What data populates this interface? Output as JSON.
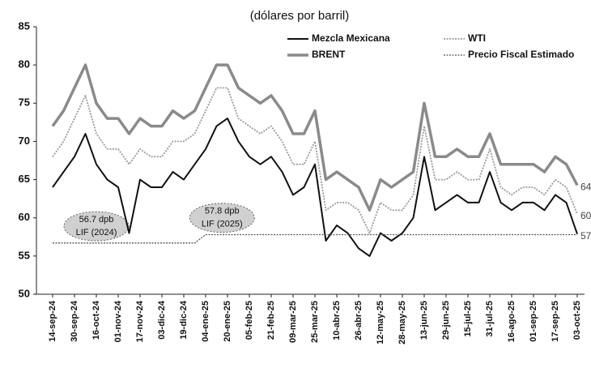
{
  "chart_data": {
    "type": "line",
    "title": "(dólares por barril)",
    "categories": [
      "14-sep-24",
      null,
      "30-sep-24",
      null,
      "16-oct-24",
      null,
      "01-nov-24",
      null,
      "17-nov-24",
      null,
      "03-dic-24",
      null,
      "19-dic-24",
      null,
      "04-ene-25",
      null,
      "20-ene-25",
      null,
      "05-feb-25",
      null,
      "21-feb-25",
      null,
      "09-mar-25",
      null,
      "25-mar-25",
      null,
      "10-abr-25",
      null,
      "26-abr-25",
      null,
      "12-may-25",
      null,
      "28-may-25",
      null,
      "13-jun-25",
      null,
      "29-jun-25",
      null,
      "15-jul-25",
      null,
      "31-jul-25",
      null,
      "16-ago-25",
      null,
      "01-sep-25",
      null,
      "17-sep-25",
      null,
      "03-oct-25"
    ],
    "series": [
      {
        "name": "Mezcla Mexicana",
        "color": "#111111",
        "style": "solid",
        "width": 2,
        "values": [
          64,
          66,
          68,
          71,
          67,
          65,
          64,
          58,
          65,
          64,
          64,
          66,
          65,
          67,
          69,
          72,
          73,
          70,
          68,
          67,
          68,
          66,
          63,
          64,
          67,
          57,
          59,
          58,
          56,
          55,
          58,
          57,
          58,
          60,
          68,
          61,
          62,
          63,
          62,
          62,
          66,
          62,
          61,
          62,
          62,
          61,
          63,
          62,
          57.88
        ],
        "value_labels": [
          null,
          null,
          null,
          null,
          null,
          null,
          null,
          null,
          null,
          null,
          null,
          null,
          null,
          null,
          null,
          null,
          null,
          null,
          null,
          null,
          null,
          null,
          null,
          null,
          null,
          null,
          null,
          null,
          null,
          null,
          null,
          null,
          null,
          null,
          null,
          null,
          null,
          null,
          null,
          null,
          null,
          null,
          null,
          null,
          null,
          null,
          null,
          null,
          "57.88"
        ]
      },
      {
        "name": "BRENT",
        "color": "#8a8a8a",
        "style": "solid",
        "width": 3.5,
        "values": [
          72,
          74,
          77,
          80,
          75,
          73,
          73,
          71,
          73,
          72,
          72,
          74,
          73,
          74,
          77,
          80,
          80,
          77,
          76,
          75,
          76,
          74,
          71,
          71,
          74,
          65,
          66,
          65,
          64,
          61,
          65,
          64,
          65,
          66,
          75,
          68,
          68,
          69,
          68,
          68,
          71,
          67,
          67,
          67,
          67,
          66,
          68,
          67,
          64.27
        ],
        "value_labels": [
          null,
          null,
          null,
          null,
          null,
          null,
          null,
          null,
          null,
          null,
          null,
          null,
          null,
          null,
          null,
          null,
          null,
          null,
          null,
          null,
          null,
          null,
          null,
          null,
          null,
          null,
          null,
          null,
          null,
          null,
          null,
          null,
          null,
          null,
          null,
          null,
          null,
          null,
          null,
          null,
          null,
          null,
          null,
          null,
          null,
          null,
          null,
          null,
          "64.27"
        ]
      },
      {
        "name": "WTI",
        "color": "#9a9a9a",
        "style": "dotted",
        "width": 1.8,
        "values": [
          68,
          70,
          73,
          76,
          71,
          69,
          69,
          67,
          69,
          68,
          68,
          70,
          70,
          71,
          74,
          77,
          77,
          73,
          72,
          71,
          72,
          70,
          67,
          67,
          70,
          61,
          62,
          62,
          61,
          58,
          62,
          61,
          61,
          63,
          72,
          65,
          65,
          66,
          65,
          65,
          69,
          64,
          63,
          64,
          64,
          63,
          65,
          64,
          60.5
        ],
        "value_labels": [
          null,
          null,
          null,
          null,
          null,
          null,
          null,
          null,
          null,
          null,
          null,
          null,
          null,
          null,
          null,
          null,
          null,
          null,
          null,
          null,
          null,
          null,
          null,
          null,
          null,
          null,
          null,
          null,
          null,
          null,
          null,
          null,
          null,
          null,
          null,
          null,
          null,
          null,
          null,
          null,
          null,
          null,
          null,
          null,
          null,
          null,
          null,
          null,
          "60.50"
        ]
      },
      {
        "name": "Precio Fiscal Estimado",
        "color": "#555555",
        "style": "dotted",
        "width": 1.3,
        "values": [
          56.7,
          56.7,
          56.7,
          56.7,
          56.7,
          56.7,
          56.7,
          56.7,
          56.7,
          56.7,
          56.7,
          56.7,
          56.7,
          56.7,
          57.8,
          57.8,
          57.8,
          57.8,
          57.8,
          57.8,
          57.8,
          57.8,
          57.8,
          57.8,
          57.8,
          57.8,
          57.8,
          57.8,
          57.8,
          57.8,
          57.8,
          57.8,
          57.8,
          57.8,
          57.8,
          57.8,
          57.8,
          57.8,
          57.8,
          57.8,
          57.8,
          57.8,
          57.8,
          57.8,
          57.8,
          57.8,
          57.8,
          57.8,
          57.8
        ]
      }
    ],
    "annotations": [
      {
        "lines": [
          "56.7 dpb",
          "LIF (2024)"
        ]
      },
      {
        "lines": [
          "57.8 dpb",
          "LIF (2025)"
        ]
      }
    ],
    "ylim": [
      50,
      85
    ],
    "yticks": [
      50,
      55,
      60,
      65,
      70,
      75,
      80,
      85
    ]
  }
}
